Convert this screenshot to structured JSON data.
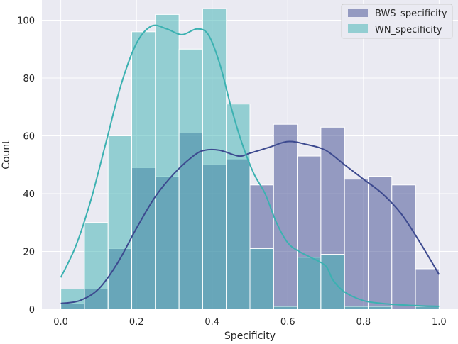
{
  "chart_data": {
    "type": "histogram",
    "xlabel": "Specificity",
    "ylabel": "Count",
    "xlim": [
      -0.05,
      1.05
    ],
    "ylim": [
      0,
      107
    ],
    "xticks": [
      0.0,
      0.2,
      0.4,
      0.6,
      0.8,
      1.0
    ],
    "xtick_labels": [
      "0.0",
      "0.2",
      "0.4",
      "0.6",
      "0.8",
      "1.0"
    ],
    "yticks": [
      0,
      20,
      40,
      60,
      80,
      100
    ],
    "ytick_labels": [
      "0",
      "20",
      "40",
      "60",
      "80",
      "100"
    ],
    "grid": true,
    "legend_position": "top-right",
    "bin_edges": [
      0.0,
      0.0625,
      0.125,
      0.1875,
      0.25,
      0.3125,
      0.375,
      0.4375,
      0.5,
      0.5625,
      0.625,
      0.6875,
      0.75,
      0.8125,
      0.875,
      0.9375,
      1.0
    ],
    "series": [
      {
        "name": "BWS_specificity",
        "color": "#3d4a8f",
        "counts": [
          2,
          7,
          21,
          49,
          46,
          61,
          50,
          52,
          43,
          64,
          53,
          63,
          45,
          46,
          43,
          14
        ],
        "kde": [
          [
            0.0,
            2
          ],
          [
            0.05,
            3
          ],
          [
            0.1,
            7
          ],
          [
            0.15,
            16
          ],
          [
            0.2,
            28
          ],
          [
            0.25,
            39
          ],
          [
            0.3,
            47
          ],
          [
            0.35,
            53
          ],
          [
            0.38,
            55
          ],
          [
            0.42,
            55
          ],
          [
            0.47,
            53
          ],
          [
            0.5,
            54
          ],
          [
            0.55,
            56
          ],
          [
            0.6,
            58
          ],
          [
            0.65,
            57
          ],
          [
            0.7,
            55
          ],
          [
            0.75,
            50
          ],
          [
            0.8,
            45
          ],
          [
            0.85,
            40
          ],
          [
            0.9,
            33
          ],
          [
            0.95,
            23
          ],
          [
            1.0,
            12
          ]
        ]
      },
      {
        "name": "WN_specificity",
        "color": "#3bb1b1",
        "counts": [
          7,
          30,
          60,
          96,
          102,
          90,
          104,
          71,
          21,
          1,
          18,
          19,
          1,
          1,
          0,
          1
        ],
        "kde": [
          [
            0.0,
            11
          ],
          [
            0.04,
            22
          ],
          [
            0.08,
            38
          ],
          [
            0.12,
            58
          ],
          [
            0.16,
            78
          ],
          [
            0.2,
            92
          ],
          [
            0.24,
            98
          ],
          [
            0.28,
            97
          ],
          [
            0.32,
            95
          ],
          [
            0.36,
            97
          ],
          [
            0.39,
            95
          ],
          [
            0.42,
            85
          ],
          [
            0.45,
            70
          ],
          [
            0.48,
            57
          ],
          [
            0.51,
            47
          ],
          [
            0.54,
            40
          ],
          [
            0.57,
            30
          ],
          [
            0.6,
            23
          ],
          [
            0.63,
            20
          ],
          [
            0.66,
            18
          ],
          [
            0.7,
            15
          ],
          [
            0.72,
            10
          ],
          [
            0.75,
            6
          ],
          [
            0.8,
            3
          ],
          [
            0.85,
            2
          ],
          [
            0.9,
            1.5
          ],
          [
            0.95,
            1.2
          ],
          [
            1.0,
            1
          ]
        ]
      }
    ]
  }
}
